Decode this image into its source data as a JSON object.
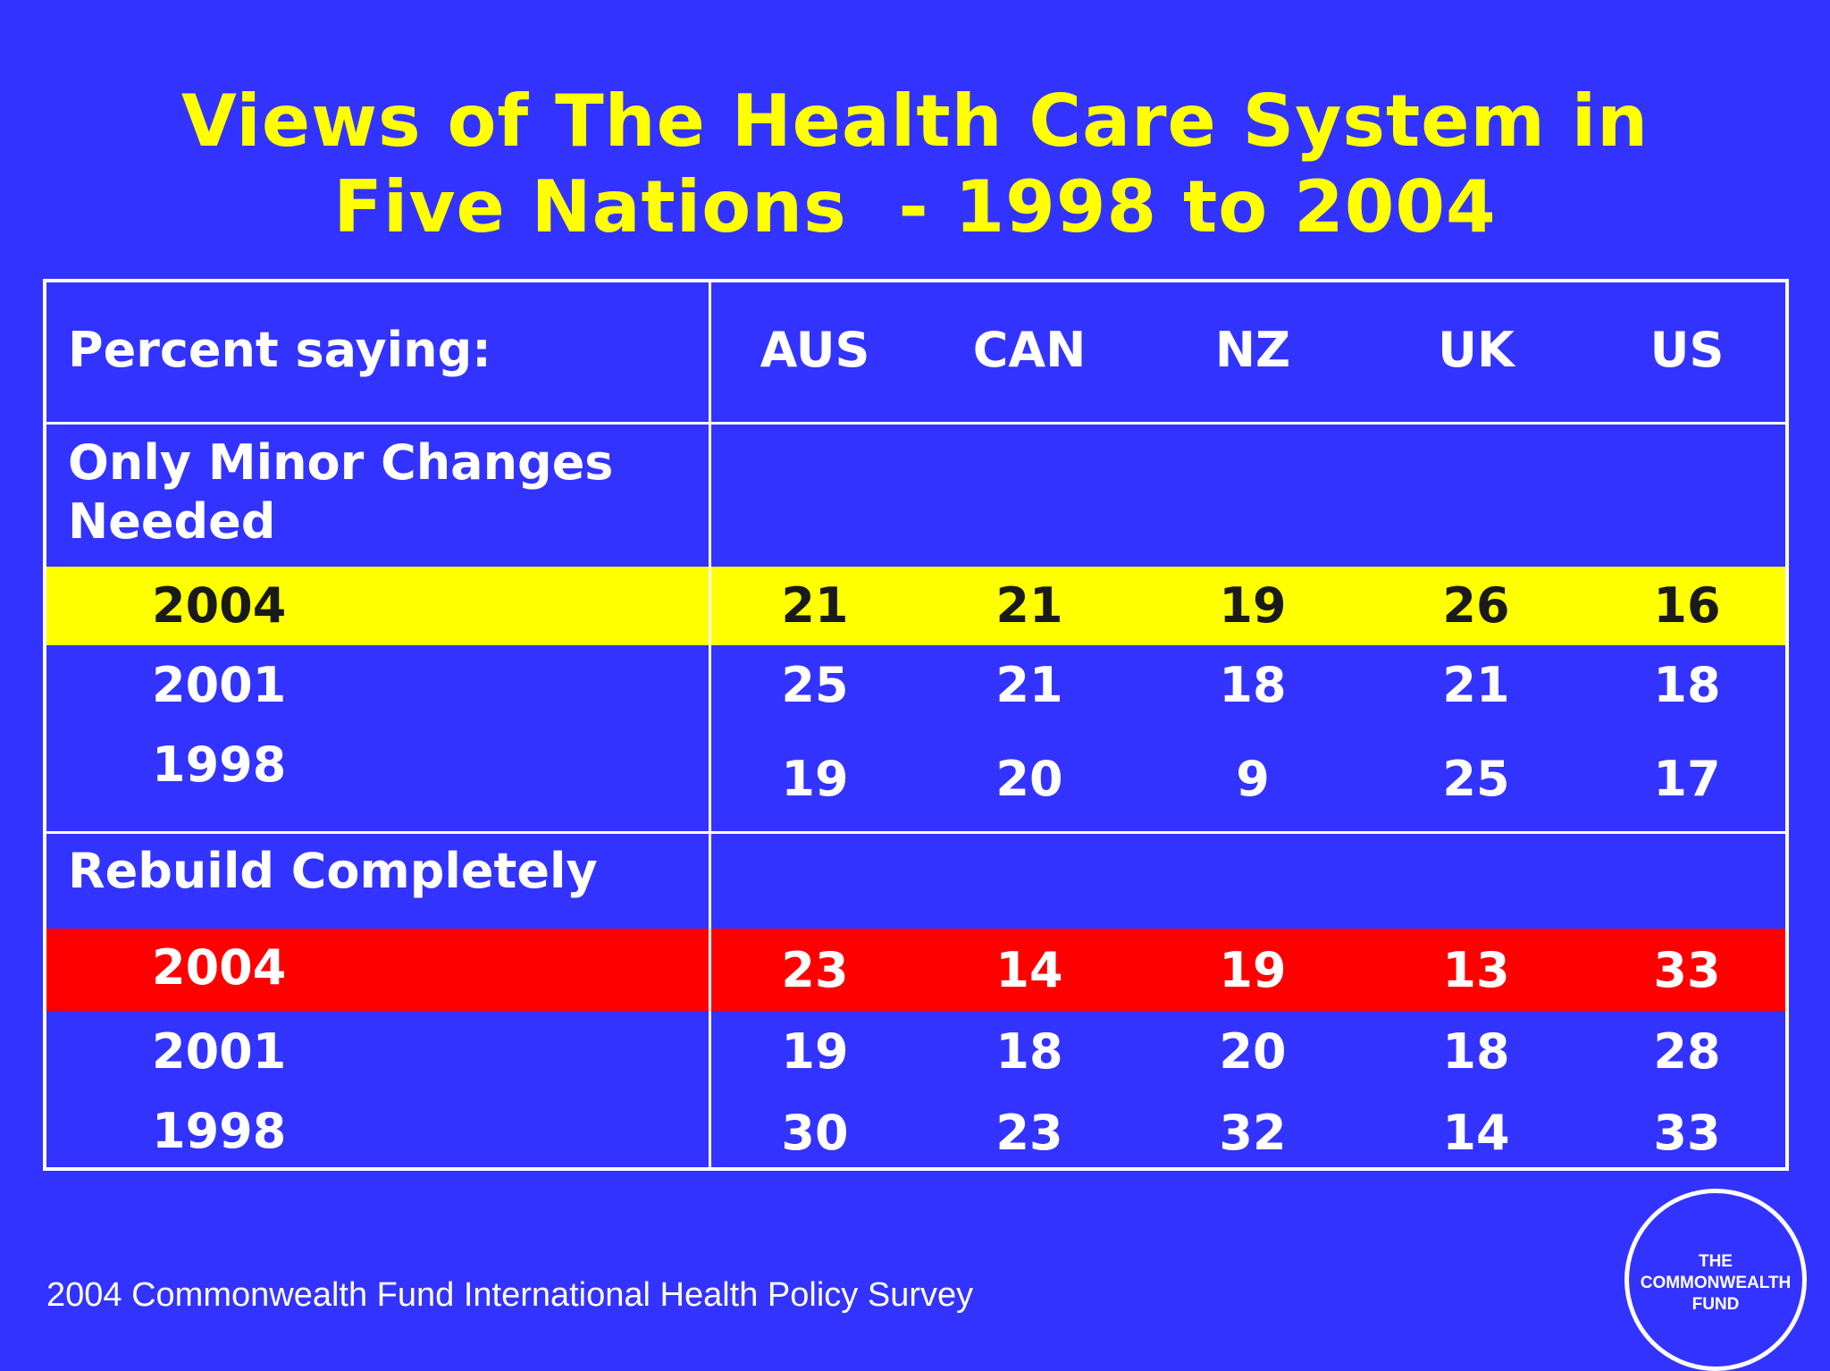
{
  "title": {
    "line1": "Views of The Health Care System in",
    "line2": "Five Nations  - 1998 to 2004"
  },
  "chart_data": {
    "type": "table",
    "header": {
      "label": "Percent saying:",
      "columns": [
        "AUS",
        "CAN",
        "NZ",
        "UK",
        "US"
      ]
    },
    "sections": [
      {
        "label_line1": "Only Minor Changes",
        "label_line2": "Needed",
        "rows": [
          {
            "year": "2004",
            "values": [
              "21",
              "21",
              "19",
              "26",
              "16"
            ]
          },
          {
            "year": "2001",
            "values": [
              "25",
              "21",
              "18",
              "21",
              "18"
            ]
          },
          {
            "year": "1998",
            "values": [
              "19",
              "20",
              "9",
              "25",
              "17"
            ]
          }
        ]
      },
      {
        "label_line1": "Rebuild Completely",
        "rows": [
          {
            "year": "2004",
            "values": [
              "23",
              "14",
              "19",
              "13",
              "33"
            ]
          },
          {
            "year": "2001",
            "values": [
              "19",
              "18",
              "20",
              "18",
              "28"
            ]
          },
          {
            "year": "1998",
            "values": [
              "30",
              "23",
              "32",
              "14",
              "33"
            ]
          }
        ]
      }
    ],
    "highlight_colors": {
      "minor_2004": "#ffff00",
      "rebuild_2004": "#ff0000"
    }
  },
  "footer": {
    "source": "2004 Commonwealth Fund International Health Policy Survey"
  },
  "logo": {
    "line1": "THE",
    "line2": "COMMONWEALTH",
    "line3": "FUND"
  },
  "colors": {
    "background": "#3333ff",
    "title": "#ffff00",
    "text": "#ffffff"
  }
}
